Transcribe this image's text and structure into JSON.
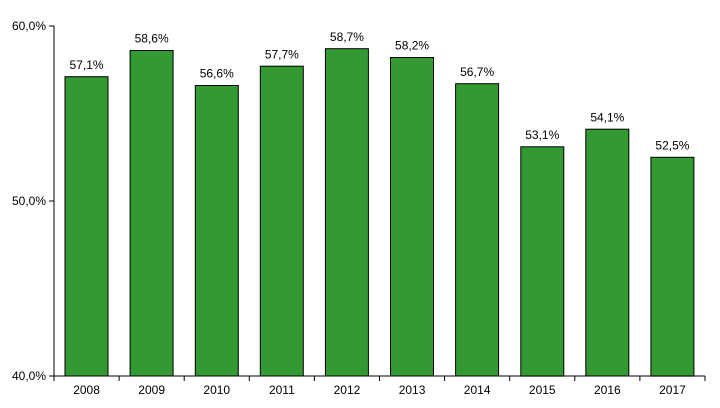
{
  "chart_data": {
    "type": "bar",
    "categories": [
      "2008",
      "2009",
      "2010",
      "2011",
      "2012",
      "2013",
      "2014",
      "2015",
      "2016",
      "2017"
    ],
    "values": [
      57.1,
      58.6,
      56.6,
      57.7,
      58.7,
      58.2,
      56.7,
      53.1,
      54.1,
      52.5
    ],
    "value_labels": [
      "57,1%",
      "58,6%",
      "56,6%",
      "57,7%",
      "58,7%",
      "58,2%",
      "56,7%",
      "53,1%",
      "54,1%",
      "52,5%"
    ],
    "ylim": [
      40,
      60
    ],
    "y_ticks": [
      40,
      50,
      60
    ],
    "y_tick_labels": [
      "40,0%",
      "50,0%",
      "60,0%"
    ],
    "bar_color": "#339933",
    "grid": false,
    "legend": "none"
  }
}
